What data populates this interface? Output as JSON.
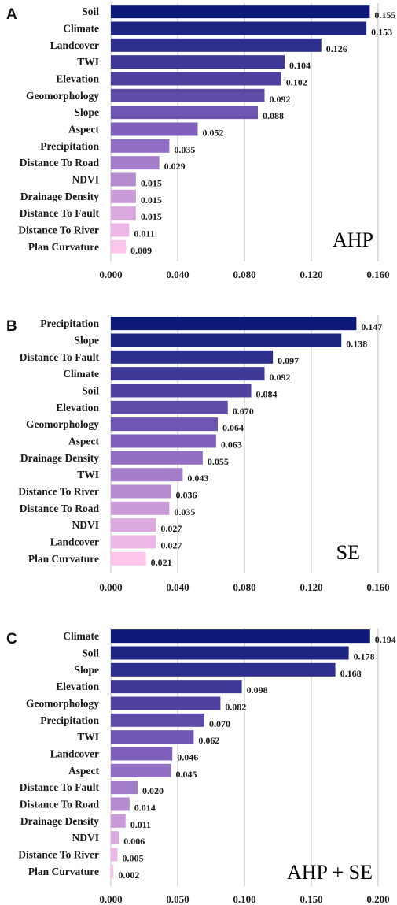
{
  "chart_data": [
    {
      "type": "bar",
      "orientation": "horizontal",
      "panel": "A",
      "method_label": "AHP",
      "categories": [
        "Soil",
        "Climate",
        "Landcover",
        "TWI",
        "Elevation",
        "Geomorphology",
        "Slope",
        "Aspect",
        "Precipitation",
        "Distance To Road",
        "NDVI",
        "Drainage Density",
        "Distance To Fault",
        "Distance To River",
        "Plan Curvature"
      ],
      "values": [
        0.155,
        0.153,
        0.126,
        0.104,
        0.102,
        0.092,
        0.088,
        0.052,
        0.035,
        0.029,
        0.015,
        0.015,
        0.015,
        0.011,
        0.009
      ],
      "value_labels": [
        "0.155",
        "0.153",
        "0.126",
        "0.104",
        "0.102",
        "0.092",
        "0.088",
        "0.052",
        "0.035",
        "0.029",
        "0.015",
        "0.015",
        "0.015",
        "0.011",
        "0.009"
      ],
      "xlim": [
        0,
        0.16
      ],
      "xticks": [
        0,
        0.04,
        0.08,
        0.12,
        0.16
      ],
      "xtick_labels": [
        "0.000",
        "0.040",
        "0.080",
        "0.120",
        "0.160"
      ],
      "grid": "vertical",
      "color_scale": {
        "high": "#0d1a78",
        "mid": "#8060bd",
        "low": "#ffc6ec"
      }
    },
    {
      "type": "bar",
      "orientation": "horizontal",
      "panel": "B",
      "method_label": "SE",
      "categories": [
        "Precipitation",
        "Slope",
        "Distance To Fault",
        "Climate",
        "Soil",
        "Elevation",
        "Geomorphology",
        "Aspect",
        "Drainage Density",
        "TWI",
        "Distance To River",
        "Distance To Road",
        "NDVI",
        "Landcover",
        "Plan Curvature"
      ],
      "values": [
        0.147,
        0.138,
        0.097,
        0.092,
        0.084,
        0.07,
        0.064,
        0.063,
        0.055,
        0.043,
        0.036,
        0.035,
        0.027,
        0.027,
        0.021
      ],
      "value_labels": [
        "0.147",
        "0.138",
        "0.097",
        "0.092",
        "0.084",
        "0.070",
        "0.064",
        "0.063",
        "0.055",
        "0.043",
        "0.036",
        "0.035",
        "0.027",
        "0.027",
        "0.021"
      ],
      "xlim": [
        0,
        0.16
      ],
      "xticks": [
        0,
        0.04,
        0.08,
        0.12,
        0.16
      ],
      "xtick_labels": [
        "0.000",
        "0.040",
        "0.080",
        "0.120",
        "0.160"
      ],
      "grid": "vertical",
      "color_scale": {
        "high": "#0d1a78",
        "mid": "#8060bd",
        "low": "#ffc6ec"
      }
    },
    {
      "type": "bar",
      "orientation": "horizontal",
      "panel": "C",
      "method_label": "AHP + SE",
      "categories": [
        "Climate",
        "Soil",
        "Slope",
        "Elevation",
        "Geomorphology",
        "Precipitation",
        "TWI",
        "Landcover",
        "Aspect",
        "Distance To Fault",
        "Distance To Road",
        "Drainage Density",
        "NDVI",
        "Distance To River",
        "Plan Curvature"
      ],
      "values": [
        0.194,
        0.178,
        0.168,
        0.098,
        0.082,
        0.07,
        0.062,
        0.046,
        0.045,
        0.02,
        0.014,
        0.011,
        0.006,
        0.005,
        0.002
      ],
      "value_labels": [
        "0.194",
        "0.178",
        "0.168",
        "0.098",
        "0.082",
        "0.070",
        "0.062",
        "0.046",
        "0.045",
        "0.020",
        "0.014",
        "0.011",
        "0.006",
        "0.005",
        "0.002"
      ],
      "xlim": [
        0,
        0.2
      ],
      "xticks": [
        0,
        0.05,
        0.1,
        0.15,
        0.2
      ],
      "xtick_labels": [
        "0.000",
        "0.050",
        "0.100",
        "0.150",
        "0.200"
      ],
      "grid": "vertical",
      "color_scale": {
        "high": "#0d1a78",
        "mid": "#8060bd",
        "low": "#ffc6ec"
      }
    }
  ]
}
